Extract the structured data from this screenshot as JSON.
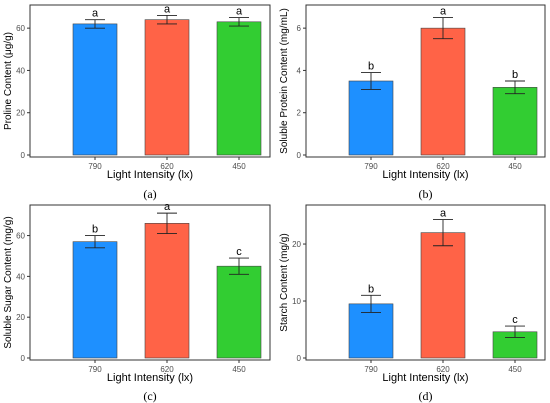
{
  "chart_data": [
    {
      "type": "bar",
      "panel": "(a)",
      "categories": [
        "790",
        "620",
        "450"
      ],
      "values": [
        62,
        64,
        63
      ],
      "errors": [
        2,
        2,
        2
      ],
      "letters": [
        "a",
        "a",
        "a"
      ],
      "xlabel": "Light Intensity (lx)",
      "ylabel": "Proline Content (μg/g)",
      "ylim": [
        0,
        70
      ],
      "yticks": [
        0,
        20,
        40,
        60
      ],
      "grid": false
    },
    {
      "type": "bar",
      "panel": "(b)",
      "categories": [
        "790",
        "620",
        "450"
      ],
      "values": [
        3.5,
        6.0,
        3.2
      ],
      "errors": [
        0.4,
        0.5,
        0.3
      ],
      "letters": [
        "b",
        "a",
        "b"
      ],
      "xlabel": "Light Intensity (lx)",
      "ylabel": "Soluble Protein Content (mg/mL)",
      "ylim": [
        0,
        7.0
      ],
      "yticks": [
        0,
        2,
        4,
        6
      ],
      "grid": false
    },
    {
      "type": "bar",
      "panel": "(c)",
      "categories": [
        "790",
        "620",
        "450"
      ],
      "values": [
        57,
        66,
        45
      ],
      "errors": [
        3,
        5,
        4
      ],
      "letters": [
        "b",
        "a",
        "c"
      ],
      "xlabel": "Light Intensity (lx)",
      "ylabel": "Soluble Sugar Content (mg/g)",
      "ylim": [
        0,
        74
      ],
      "yticks": [
        0,
        20,
        40,
        60
      ],
      "grid": false
    },
    {
      "type": "bar",
      "panel": "(d)",
      "categories": [
        "790",
        "620",
        "450"
      ],
      "values": [
        9.5,
        22,
        4.6
      ],
      "errors": [
        1.5,
        2.3,
        1.0
      ],
      "letters": [
        "b",
        "a",
        "c"
      ],
      "xlabel": "Light Intensity (lx)",
      "ylabel": "Starch Content (mg/g)",
      "ylim": [
        0,
        26.5
      ],
      "yticks": [
        0,
        10,
        20
      ],
      "grid": false
    }
  ],
  "colors": {
    "bar_colors": [
      "#1e90ff",
      "#ff6347",
      "#32cd32"
    ],
    "axis": "#333333",
    "text": "#000000",
    "tick_text": "#4d4d4d"
  }
}
